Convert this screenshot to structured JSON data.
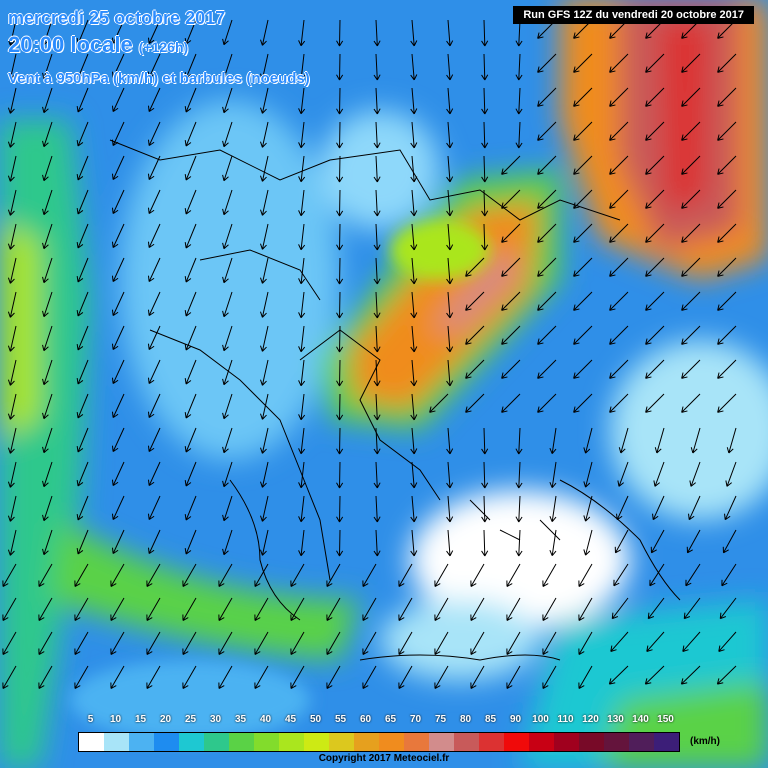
{
  "header": {
    "date_line": "mercredi 25 octobre 2017",
    "time_line": "20:00 locale",
    "lead": "(+126h)",
    "variable": "Vent à 950hPa (km/h) et barbules (noeuds)",
    "run": "Run GFS 12Z du vendredi 20 octobre 2017"
  },
  "legend": {
    "labels": [
      "5",
      "10",
      "15",
      "20",
      "25",
      "30",
      "35",
      "40",
      "45",
      "50",
      "55",
      "60",
      "65",
      "70",
      "75",
      "80",
      "85",
      "90",
      "100",
      "110",
      "120",
      "130",
      "140",
      "150"
    ],
    "colors": [
      "#ffffff",
      "#a8e4f8",
      "#4cb2f2",
      "#1e8cf0",
      "#1ec8d2",
      "#2ec88c",
      "#5ad246",
      "#82dc2c",
      "#aae61e",
      "#cdea14",
      "#dcc81e",
      "#e6a01e",
      "#f08c1e",
      "#e8783c",
      "#d28c8c",
      "#c85a5a",
      "#dc3232",
      "#f00a0a",
      "#c80014",
      "#a0001e",
      "#780a28",
      "#64143c",
      "#501e5a",
      "#3c1e78"
    ],
    "unit": "(km/h)"
  },
  "copyright": "Copyright 2017 Meteociel.fr",
  "colors": {
    "sea_blue": "#2f8fe8",
    "title_blue": "#2b8cff"
  }
}
